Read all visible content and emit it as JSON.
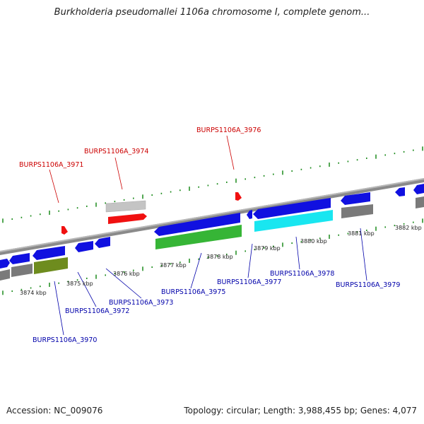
{
  "header": {
    "title": "Burkholderia pseudomallei 1106a chromosome I, complete genom..."
  },
  "footer": {
    "accession": "Accession: NC_009076",
    "summary": "Topology: circular; Length: 3,988,455 bp; Genes: 4,077"
  },
  "colors": {
    "backbone": "#8a8a8a",
    "tick": "#1a8a1a",
    "forward_label": "#cc0000",
    "reverse_label": "#0000aa",
    "cds_blue": "#1010e0",
    "cds_green": "#36b536",
    "cds_olive": "#6e8c1e",
    "cds_cyan": "#19e6f0",
    "cds_red": "#f01010",
    "cds_gray": "#7a7a7a",
    "cds_lightgray": "#c4c4c4"
  },
  "ruler": {
    "labels": [
      "3874 kbp",
      "3875 kbp",
      "3876 kbp",
      "3877 kbp",
      "3878 kbp",
      "3879 kbp",
      "3880 kbp",
      "3881 kbp",
      "3882 kbp"
    ]
  },
  "gene_labels": {
    "forward": [
      "BURPS1106A_3971",
      "BURPS1106A_3974",
      "BURPS1106A_3976"
    ],
    "reverse": [
      "BURPS1106A_3970",
      "BURPS1106A_3972",
      "BURPS1106A_3973",
      "BURPS1106A_3975",
      "BURPS1106A_3977",
      "BURPS1106A_3978",
      "BURPS1106A_3979"
    ]
  }
}
